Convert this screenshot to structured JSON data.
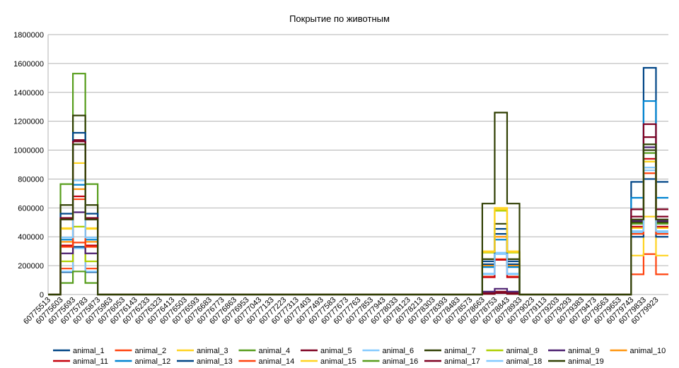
{
  "chart_data": {
    "type": "line",
    "title": "Покрытие по животным",
    "xlabel": "",
    "ylabel": "",
    "ylim": [
      0,
      1800000
    ],
    "yticks": [
      "0",
      "200000",
      "400000",
      "600000",
      "800000",
      "1000000",
      "1200000",
      "1400000",
      "1600000",
      "1800000"
    ],
    "grid": "horizontal",
    "legend_position": "bottom",
    "categories": [
      "60775513",
      "60775603",
      "60775693",
      "60775783",
      "60775873",
      "60775963",
      "60776053",
      "60776143",
      "60776233",
      "60776323",
      "60776413",
      "60776503",
      "60776593",
      "60776683",
      "60776773",
      "60776863",
      "60776953",
      "60777043",
      "60777133",
      "60777223",
      "60777313",
      "60777403",
      "60777493",
      "60777583",
      "60777673",
      "60777763",
      "60777853",
      "60777943",
      "60778033",
      "60778123",
      "60778213",
      "60778303",
      "60778393",
      "60778483",
      "60778573",
      "60778663",
      "60778753",
      "60778843",
      "60778933",
      "60779023",
      "60779113",
      "60779203",
      "60779293",
      "60779383",
      "60779473",
      "60779563",
      "60779653",
      "60779743",
      "60779833",
      "60779923"
    ],
    "series": [
      {
        "name": "animal_1",
        "color": "#004586",
        "values": [
          0,
          155000,
          330000,
          155000,
          0,
          0,
          0,
          0,
          0,
          0,
          0,
          0,
          0,
          0,
          0,
          0,
          0,
          0,
          0,
          0,
          0,
          0,
          0,
          0,
          0,
          0,
          0,
          0,
          0,
          0,
          0,
          0,
          0,
          0,
          0,
          230000,
          455000,
          230000,
          0,
          0,
          0,
          0,
          0,
          0,
          0,
          0,
          0,
          780000,
          1570000,
          780000
        ]
      },
      {
        "name": "animal_2",
        "color": "#ff420e",
        "values": [
          0,
          180000,
          360000,
          180000,
          0,
          0,
          0,
          0,
          0,
          0,
          0,
          0,
          0,
          0,
          0,
          0,
          0,
          0,
          0,
          0,
          0,
          0,
          0,
          0,
          0,
          0,
          0,
          0,
          0,
          0,
          0,
          0,
          0,
          0,
          0,
          125000,
          245000,
          125000,
          0,
          0,
          0,
          0,
          0,
          0,
          0,
          0,
          0,
          140000,
          280000,
          140000
        ]
      },
      {
        "name": "animal_3",
        "color": "#ffd320",
        "values": [
          0,
          460000,
          910000,
          460000,
          0,
          0,
          0,
          0,
          0,
          0,
          0,
          0,
          0,
          0,
          0,
          0,
          0,
          0,
          0,
          0,
          0,
          0,
          0,
          0,
          0,
          0,
          0,
          0,
          0,
          0,
          0,
          0,
          0,
          0,
          0,
          300000,
          600000,
          300000,
          0,
          0,
          0,
          0,
          0,
          0,
          0,
          0,
          0,
          270000,
          540000,
          270000
        ]
      },
      {
        "name": "animal_4",
        "color": "#579d1c",
        "values": [
          0,
          765000,
          1530000,
          765000,
          0,
          0,
          0,
          0,
          0,
          0,
          0,
          0,
          0,
          0,
          0,
          0,
          0,
          0,
          0,
          0,
          0,
          0,
          0,
          0,
          0,
          0,
          0,
          0,
          0,
          0,
          0,
          0,
          0,
          0,
          0,
          5000,
          10000,
          5000,
          0,
          0,
          0,
          0,
          0,
          0,
          0,
          0,
          0,
          460000,
          920000,
          460000
        ]
      },
      {
        "name": "animal_5",
        "color": "#7e0021",
        "values": [
          0,
          520000,
          1070000,
          520000,
          0,
          0,
          0,
          0,
          0,
          0,
          0,
          0,
          0,
          0,
          0,
          0,
          0,
          0,
          0,
          0,
          0,
          0,
          0,
          0,
          0,
          0,
          0,
          0,
          0,
          0,
          0,
          0,
          0,
          0,
          0,
          10000,
          20000,
          10000,
          0,
          0,
          0,
          0,
          0,
          0,
          0,
          0,
          0,
          540000,
          1090000,
          540000
        ]
      },
      {
        "name": "animal_6",
        "color": "#83caff",
        "values": [
          0,
          160000,
          320000,
          160000,
          0,
          0,
          0,
          0,
          0,
          0,
          0,
          0,
          0,
          0,
          0,
          0,
          0,
          0,
          0,
          0,
          0,
          0,
          0,
          0,
          0,
          0,
          0,
          0,
          0,
          0,
          0,
          0,
          0,
          0,
          0,
          145000,
          290000,
          145000,
          0,
          0,
          0,
          0,
          0,
          0,
          0,
          0,
          0,
          430000,
          860000,
          430000
        ]
      },
      {
        "name": "animal_7",
        "color": "#314004",
        "values": [
          0,
          620000,
          1240000,
          620000,
          0,
          0,
          0,
          0,
          0,
          0,
          0,
          0,
          0,
          0,
          0,
          0,
          0,
          0,
          0,
          0,
          0,
          0,
          0,
          0,
          0,
          0,
          0,
          0,
          0,
          0,
          0,
          0,
          0,
          0,
          0,
          245000,
          490000,
          245000,
          0,
          0,
          0,
          0,
          0,
          0,
          0,
          0,
          0,
          500000,
          1000000,
          500000
        ]
      },
      {
        "name": "animal_8",
        "color": "#aecf00",
        "values": [
          0,
          230000,
          470000,
          230000,
          0,
          0,
          0,
          0,
          0,
          0,
          0,
          0,
          0,
          0,
          0,
          0,
          0,
          0,
          0,
          0,
          0,
          0,
          0,
          0,
          0,
          0,
          0,
          0,
          0,
          0,
          0,
          0,
          0,
          0,
          0,
          290000,
          580000,
          290000,
          0,
          0,
          0,
          0,
          0,
          0,
          0,
          0,
          0,
          460000,
          920000,
          460000
        ]
      },
      {
        "name": "animal_9",
        "color": "#4b1f6f",
        "values": [
          0,
          285000,
          570000,
          285000,
          0,
          0,
          0,
          0,
          0,
          0,
          0,
          0,
          0,
          0,
          0,
          0,
          0,
          0,
          0,
          0,
          0,
          0,
          0,
          0,
          0,
          0,
          0,
          0,
          0,
          0,
          0,
          0,
          0,
          0,
          0,
          20000,
          40000,
          20000,
          0,
          0,
          0,
          0,
          0,
          0,
          0,
          0,
          0,
          510000,
          1020000,
          510000
        ]
      },
      {
        "name": "animal_10",
        "color": "#ff950e",
        "values": [
          0,
          365000,
          730000,
          365000,
          0,
          0,
          0,
          0,
          0,
          0,
          0,
          0,
          0,
          0,
          0,
          0,
          0,
          0,
          0,
          0,
          0,
          0,
          0,
          0,
          0,
          0,
          0,
          0,
          0,
          0,
          0,
          0,
          0,
          0,
          0,
          200000,
          400000,
          200000,
          0,
          0,
          0,
          0,
          0,
          0,
          0,
          0,
          0,
          440000,
          880000,
          440000
        ]
      },
      {
        "name": "animal_11",
        "color": "#c5000b",
        "values": [
          0,
          340000,
          680000,
          340000,
          0,
          0,
          0,
          0,
          0,
          0,
          0,
          0,
          0,
          0,
          0,
          0,
          0,
          0,
          0,
          0,
          0,
          0,
          0,
          0,
          0,
          0,
          0,
          0,
          0,
          0,
          0,
          0,
          0,
          0,
          0,
          120000,
          240000,
          120000,
          0,
          0,
          0,
          0,
          0,
          0,
          0,
          0,
          0,
          470000,
          940000,
          470000
        ]
      },
      {
        "name": "animal_12",
        "color": "#0084d1",
        "values": [
          0,
          380000,
          760000,
          380000,
          0,
          0,
          0,
          0,
          0,
          0,
          0,
          0,
          0,
          0,
          0,
          0,
          0,
          0,
          0,
          0,
          0,
          0,
          0,
          0,
          0,
          0,
          0,
          0,
          0,
          0,
          0,
          0,
          0,
          0,
          0,
          190000,
          380000,
          190000,
          0,
          0,
          0,
          0,
          0,
          0,
          0,
          0,
          0,
          670000,
          1340000,
          670000
        ]
      },
      {
        "name": "animal_13",
        "color": "#004586",
        "values": [
          0,
          560000,
          1120000,
          560000,
          0,
          0,
          0,
          0,
          0,
          0,
          0,
          0,
          0,
          0,
          0,
          0,
          0,
          0,
          0,
          0,
          0,
          0,
          0,
          0,
          0,
          0,
          0,
          0,
          0,
          0,
          0,
          0,
          0,
          0,
          0,
          210000,
          420000,
          210000,
          0,
          0,
          0,
          0,
          0,
          0,
          0,
          0,
          0,
          400000,
          800000,
          400000
        ]
      },
      {
        "name": "animal_14",
        "color": "#ff420e",
        "values": [
          0,
          330000,
          660000,
          330000,
          0,
          0,
          0,
          0,
          0,
          0,
          0,
          0,
          0,
          0,
          0,
          0,
          0,
          0,
          0,
          0,
          0,
          0,
          0,
          0,
          0,
          0,
          0,
          0,
          0,
          0,
          0,
          0,
          0,
          0,
          0,
          5000,
          10000,
          5000,
          0,
          0,
          0,
          0,
          0,
          0,
          0,
          0,
          0,
          420000,
          840000,
          420000
        ]
      },
      {
        "name": "animal_15",
        "color": "#ffd320",
        "values": [
          0,
          455000,
          910000,
          455000,
          0,
          0,
          0,
          0,
          0,
          0,
          0,
          0,
          0,
          0,
          0,
          0,
          0,
          0,
          0,
          0,
          0,
          0,
          0,
          0,
          0,
          0,
          0,
          0,
          0,
          0,
          0,
          0,
          0,
          0,
          0,
          295000,
          590000,
          295000,
          0,
          0,
          0,
          0,
          0,
          0,
          0,
          0,
          0,
          460000,
          920000,
          460000
        ]
      },
      {
        "name": "animal_16",
        "color": "#579d1c",
        "values": [
          0,
          80000,
          160000,
          80000,
          0,
          0,
          0,
          0,
          0,
          0,
          0,
          0,
          0,
          0,
          0,
          0,
          0,
          0,
          0,
          0,
          0,
          0,
          0,
          0,
          0,
          0,
          0,
          0,
          0,
          0,
          0,
          0,
          0,
          0,
          0,
          5000,
          10000,
          5000,
          0,
          0,
          0,
          0,
          0,
          0,
          0,
          0,
          0,
          490000,
          980000,
          490000
        ]
      },
      {
        "name": "animal_17",
        "color": "#7e0021",
        "values": [
          0,
          530000,
          1060000,
          530000,
          0,
          0,
          0,
          0,
          0,
          0,
          0,
          0,
          0,
          0,
          0,
          0,
          0,
          0,
          0,
          0,
          0,
          0,
          0,
          0,
          0,
          0,
          0,
          0,
          0,
          0,
          0,
          0,
          0,
          0,
          0,
          5000,
          10000,
          5000,
          0,
          0,
          0,
          0,
          0,
          0,
          0,
          0,
          0,
          590000,
          1180000,
          590000
        ]
      },
      {
        "name": "animal_18",
        "color": "#83caff",
        "values": [
          0,
          395000,
          790000,
          395000,
          0,
          0,
          0,
          0,
          0,
          0,
          0,
          0,
          0,
          0,
          0,
          0,
          0,
          0,
          0,
          0,
          0,
          0,
          0,
          0,
          0,
          0,
          0,
          0,
          0,
          0,
          0,
          0,
          0,
          0,
          0,
          140000,
          280000,
          140000,
          0,
          0,
          0,
          0,
          0,
          0,
          0,
          0,
          0,
          440000,
          880000,
          440000
        ]
      },
      {
        "name": "animal_19",
        "color": "#314004",
        "values": [
          0,
          520000,
          1040000,
          520000,
          0,
          0,
          0,
          0,
          0,
          0,
          0,
          0,
          0,
          0,
          0,
          0,
          0,
          0,
          0,
          0,
          0,
          0,
          0,
          0,
          0,
          0,
          0,
          0,
          0,
          0,
          0,
          0,
          0,
          0,
          0,
          630000,
          1260000,
          630000,
          0,
          0,
          0,
          0,
          0,
          0,
          0,
          0,
          0,
          520000,
          1040000,
          520000
        ]
      }
    ]
  }
}
